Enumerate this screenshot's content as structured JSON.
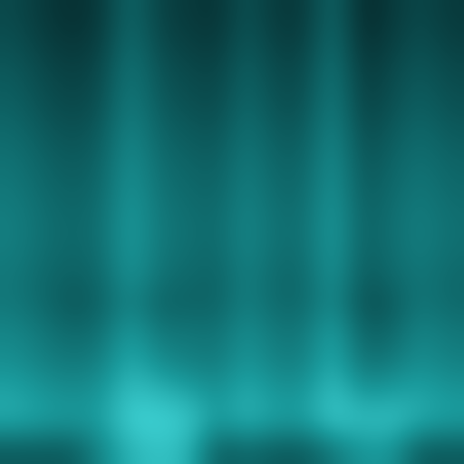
{
  "chart_data": {
    "type": "heatmap",
    "tick_labels": false,
    "cells": [
      [
        0.4,
        0.35,
        0.32,
        0.35,
        0.5,
        0.38,
        0.35,
        0.33,
        0.43,
        0.35,
        0.35,
        0.5,
        0.3,
        0.35,
        0.4,
        0.35
      ],
      [
        0.42,
        0.37,
        0.34,
        0.37,
        0.52,
        0.4,
        0.37,
        0.35,
        0.45,
        0.37,
        0.37,
        0.52,
        0.32,
        0.37,
        0.42,
        0.37
      ],
      [
        0.45,
        0.4,
        0.37,
        0.4,
        0.55,
        0.43,
        0.4,
        0.38,
        0.48,
        0.4,
        0.4,
        0.55,
        0.35,
        0.4,
        0.45,
        0.4
      ],
      [
        0.47,
        0.42,
        0.39,
        0.42,
        0.57,
        0.45,
        0.42,
        0.4,
        0.5,
        0.42,
        0.42,
        0.57,
        0.37,
        0.42,
        0.47,
        0.42
      ],
      [
        0.5,
        0.45,
        0.42,
        0.45,
        0.6,
        0.48,
        0.45,
        0.43,
        0.53,
        0.45,
        0.45,
        0.6,
        0.4,
        0.45,
        0.5,
        0.45
      ],
      [
        0.53,
        0.48,
        0.45,
        0.48,
        0.63,
        0.51,
        0.48,
        0.46,
        0.56,
        0.48,
        0.48,
        0.63,
        0.43,
        0.48,
        0.53,
        0.48
      ],
      [
        0.55,
        0.5,
        0.47,
        0.5,
        0.65,
        0.53,
        0.5,
        0.48,
        0.58,
        0.5,
        0.5,
        0.65,
        0.45,
        0.5,
        0.55,
        0.5
      ],
      [
        0.57,
        0.52,
        0.49,
        0.52,
        0.67,
        0.55,
        0.52,
        0.5,
        0.6,
        0.52,
        0.52,
        0.67,
        0.47,
        0.52,
        0.57,
        0.52
      ],
      [
        0.57,
        0.52,
        0.49,
        0.52,
        0.67,
        0.55,
        0.52,
        0.5,
        0.6,
        0.52,
        0.52,
        0.67,
        0.47,
        0.52,
        0.57,
        0.52
      ],
      [
        0.55,
        0.5,
        0.47,
        0.5,
        0.65,
        0.53,
        0.5,
        0.48,
        0.58,
        0.5,
        0.5,
        0.65,
        0.45,
        0.5,
        0.55,
        0.5
      ],
      [
        0.55,
        0.5,
        0.44,
        0.48,
        0.6,
        0.48,
        0.48,
        0.48,
        0.58,
        0.5,
        0.5,
        0.62,
        0.42,
        0.45,
        0.55,
        0.5
      ],
      [
        0.6,
        0.55,
        0.5,
        0.53,
        0.68,
        0.55,
        0.55,
        0.53,
        0.63,
        0.55,
        0.55,
        0.7,
        0.48,
        0.5,
        0.6,
        0.55
      ],
      [
        0.63,
        0.58,
        0.55,
        0.58,
        0.73,
        0.62,
        0.58,
        0.56,
        0.66,
        0.58,
        0.58,
        0.73,
        0.53,
        0.56,
        0.63,
        0.58
      ],
      [
        0.7,
        0.65,
        0.62,
        0.65,
        0.8,
        0.75,
        0.7,
        0.63,
        0.73,
        0.65,
        0.65,
        0.8,
        0.65,
        0.68,
        0.7,
        0.65
      ],
      [
        0.72,
        0.68,
        0.66,
        0.68,
        0.85,
        0.85,
        0.82,
        0.66,
        0.75,
        0.68,
        0.68,
        0.82,
        0.78,
        0.8,
        0.72,
        0.68
      ],
      [
        0.45,
        0.45,
        0.45,
        0.6,
        0.75,
        0.8,
        0.75,
        0.45,
        0.5,
        0.45,
        0.45,
        0.55,
        0.65,
        0.65,
        0.45,
        0.45
      ]
    ]
  }
}
